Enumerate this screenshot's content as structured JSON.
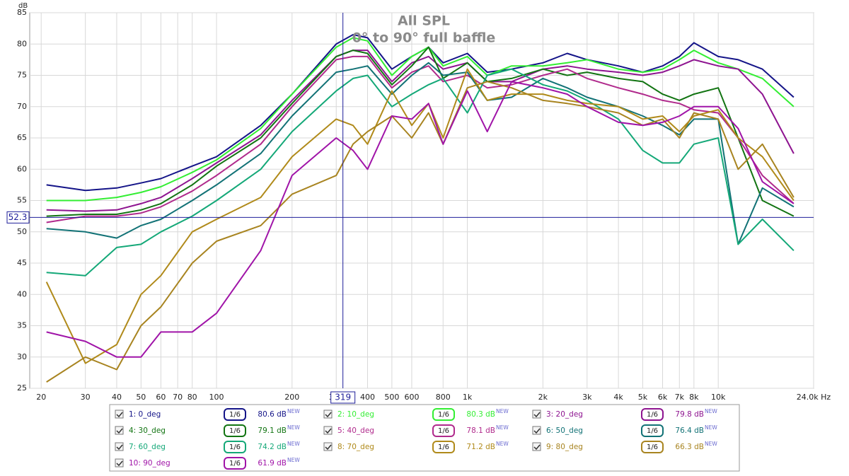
{
  "chart_data": {
    "type": "line",
    "title": "All SPL",
    "subtitle": "0° to 90° full baffle",
    "ylabel": "dB",
    "xscale": "log",
    "xlim": [
      18,
      24000
    ],
    "ylim": [
      25,
      85
    ],
    "yticks": [
      25,
      30,
      35,
      40,
      45,
      50,
      55,
      60,
      65,
      70,
      75,
      80,
      85
    ],
    "xticks": [
      20,
      30,
      40,
      50,
      60,
      70,
      80,
      100,
      200,
      300,
      400,
      500,
      600,
      800,
      {
        "value": 1000,
        "label": "1k"
      },
      {
        "value": 2000,
        "label": "2k"
      },
      {
        "value": 3000,
        "label": "3k"
      },
      {
        "value": 4000,
        "label": "4k"
      },
      {
        "value": 5000,
        "label": "5k"
      },
      {
        "value": 6000,
        "label": "6k"
      },
      {
        "value": 7000,
        "label": "7k"
      },
      {
        "value": 8000,
        "label": "8k"
      },
      {
        "value": 10000,
        "label": "10k"
      },
      {
        "value": 24000,
        "label": "24.0k Hz"
      }
    ],
    "grid": true,
    "cursor": {
      "x": 319,
      "y": 52.3
    },
    "badge": "NEW",
    "x": [
      21,
      30,
      40,
      50,
      60,
      80,
      100,
      150,
      200,
      300,
      350,
      400,
      500,
      600,
      700,
      800,
      1000,
      1200,
      1500,
      2000,
      2500,
      3000,
      4000,
      5000,
      6000,
      7000,
      8000,
      10000,
      12000,
      15000,
      20000
    ],
    "series": [
      {
        "name": "1: 0_deg",
        "color": "#141488",
        "smoothing": "1/6",
        "level": "80.6 dB",
        "values": [
          57.5,
          56.6,
          57,
          57.8,
          58.5,
          60.5,
          62,
          67,
          72,
          80,
          81.5,
          81,
          76,
          78,
          79.5,
          77,
          78.5,
          75.5,
          76,
          77,
          78.5,
          77.5,
          76.5,
          75.5,
          76.5,
          78,
          80.2,
          78,
          77.5,
          76,
          71.5
        ]
      },
      {
        "name": "2: 10_deg",
        "color": "#33ee33",
        "smoothing": "1/6",
        "level": "80.3 dB",
        "values": [
          55,
          55,
          55.5,
          56.3,
          57.2,
          59.5,
          61.5,
          66.5,
          72,
          79.5,
          81,
          80.5,
          75,
          78,
          79.5,
          76.5,
          78,
          75,
          76.5,
          76.5,
          77,
          77.5,
          76,
          75.5,
          76,
          77.5,
          79,
          77,
          76,
          74.5,
          70
        ]
      },
      {
        "name": "3: 20_deg",
        "color": "#8e1490",
        "smoothing": "1/6",
        "level": "79.8 dB",
        "values": [
          53.5,
          53.3,
          53.5,
          54.5,
          55.5,
          58.5,
          61,
          65.5,
          71,
          78,
          79,
          79,
          74,
          77,
          78,
          76,
          77,
          74,
          74,
          76,
          76.5,
          76,
          75.5,
          75,
          75.5,
          76.5,
          77.5,
          76.5,
          76,
          72,
          62.5
        ]
      },
      {
        "name": "4: 30_deg",
        "color": "#127412",
        "smoothing": "1/6",
        "level": "79.1 dB",
        "values": [
          52.5,
          52.8,
          52.8,
          53.5,
          54.5,
          57.5,
          60.5,
          65,
          70.5,
          78,
          79,
          78.5,
          73.5,
          76.5,
          79.5,
          74.5,
          77,
          74,
          74.5,
          76,
          75,
          75.5,
          74.5,
          74,
          72,
          71,
          72,
          73,
          65,
          55,
          52.5
        ]
      },
      {
        "name": "5: 40_deg",
        "color": "#b02a8c",
        "smoothing": "1/6",
        "level": "78.1 dB",
        "values": [
          51.5,
          52.5,
          52.5,
          53,
          54,
          56.5,
          59,
          64,
          70,
          77.5,
          78,
          78,
          73,
          75.5,
          76.5,
          74,
          75,
          73,
          73.5,
          75,
          76,
          74.5,
          73,
          72,
          71,
          70.5,
          69.5,
          69,
          65,
          59,
          54.5
        ]
      },
      {
        "name": "6: 50_deg",
        "color": "#127276",
        "smoothing": "1/6",
        "level": "76.4 dB",
        "values": [
          50.5,
          50,
          49,
          51,
          52,
          55,
          57.5,
          62.5,
          68.5,
          75.5,
          76,
          76.5,
          72,
          75,
          77,
          75,
          75.5,
          71,
          71.5,
          74.5,
          73,
          71.5,
          70,
          68.5,
          67,
          65.5,
          68,
          68,
          48,
          57,
          54
        ]
      },
      {
        "name": "7: 60_deg",
        "color": "#14a878",
        "smoothing": "1/6",
        "level": "74.2 dB",
        "values": [
          43.5,
          43,
          47.5,
          48,
          50,
          52.5,
          55,
          60,
          66,
          72.5,
          74.5,
          75,
          70,
          72,
          73.5,
          74.5,
          69,
          75,
          76,
          73.5,
          72.5,
          71,
          68,
          63,
          61,
          61,
          64,
          65,
          48,
          52,
          47
        ]
      },
      {
        "name": "8: 70_deg",
        "color": "#b08a1a",
        "smoothing": "1/6",
        "level": "71.2 dB",
        "values": [
          42,
          29,
          32,
          40,
          43,
          50,
          52,
          55.5,
          62,
          68,
          67,
          64,
          72.5,
          67,
          70.5,
          65,
          76,
          71,
          72,
          72,
          71,
          70.5,
          70,
          68,
          68.5,
          66,
          68.5,
          69.5,
          65,
          62,
          55
        ]
      },
      {
        "name": "9: 80_deg",
        "color": "#a88420",
        "smoothing": "1/6",
        "level": "66.3 dB",
        "values": [
          26,
          30,
          28,
          35,
          38,
          45,
          48.5,
          51,
          56,
          59,
          64,
          66,
          68.5,
          65,
          69,
          64,
          73,
          74,
          73,
          71,
          70.5,
          70,
          69,
          67,
          68,
          65,
          69,
          68,
          60,
          64,
          55.5
        ]
      },
      {
        "name": "10: 90_deg",
        "color": "#a014a8",
        "smoothing": "1/6",
        "level": "61.9 dB",
        "values": [
          34,
          32.5,
          30,
          30,
          34,
          34,
          37,
          47,
          59,
          65,
          63,
          60,
          68.5,
          68,
          70.5,
          64,
          72.5,
          66,
          74,
          73,
          72,
          70,
          67.5,
          67,
          67.5,
          68.5,
          70,
          70,
          66.5,
          58,
          54.5
        ]
      }
    ]
  }
}
